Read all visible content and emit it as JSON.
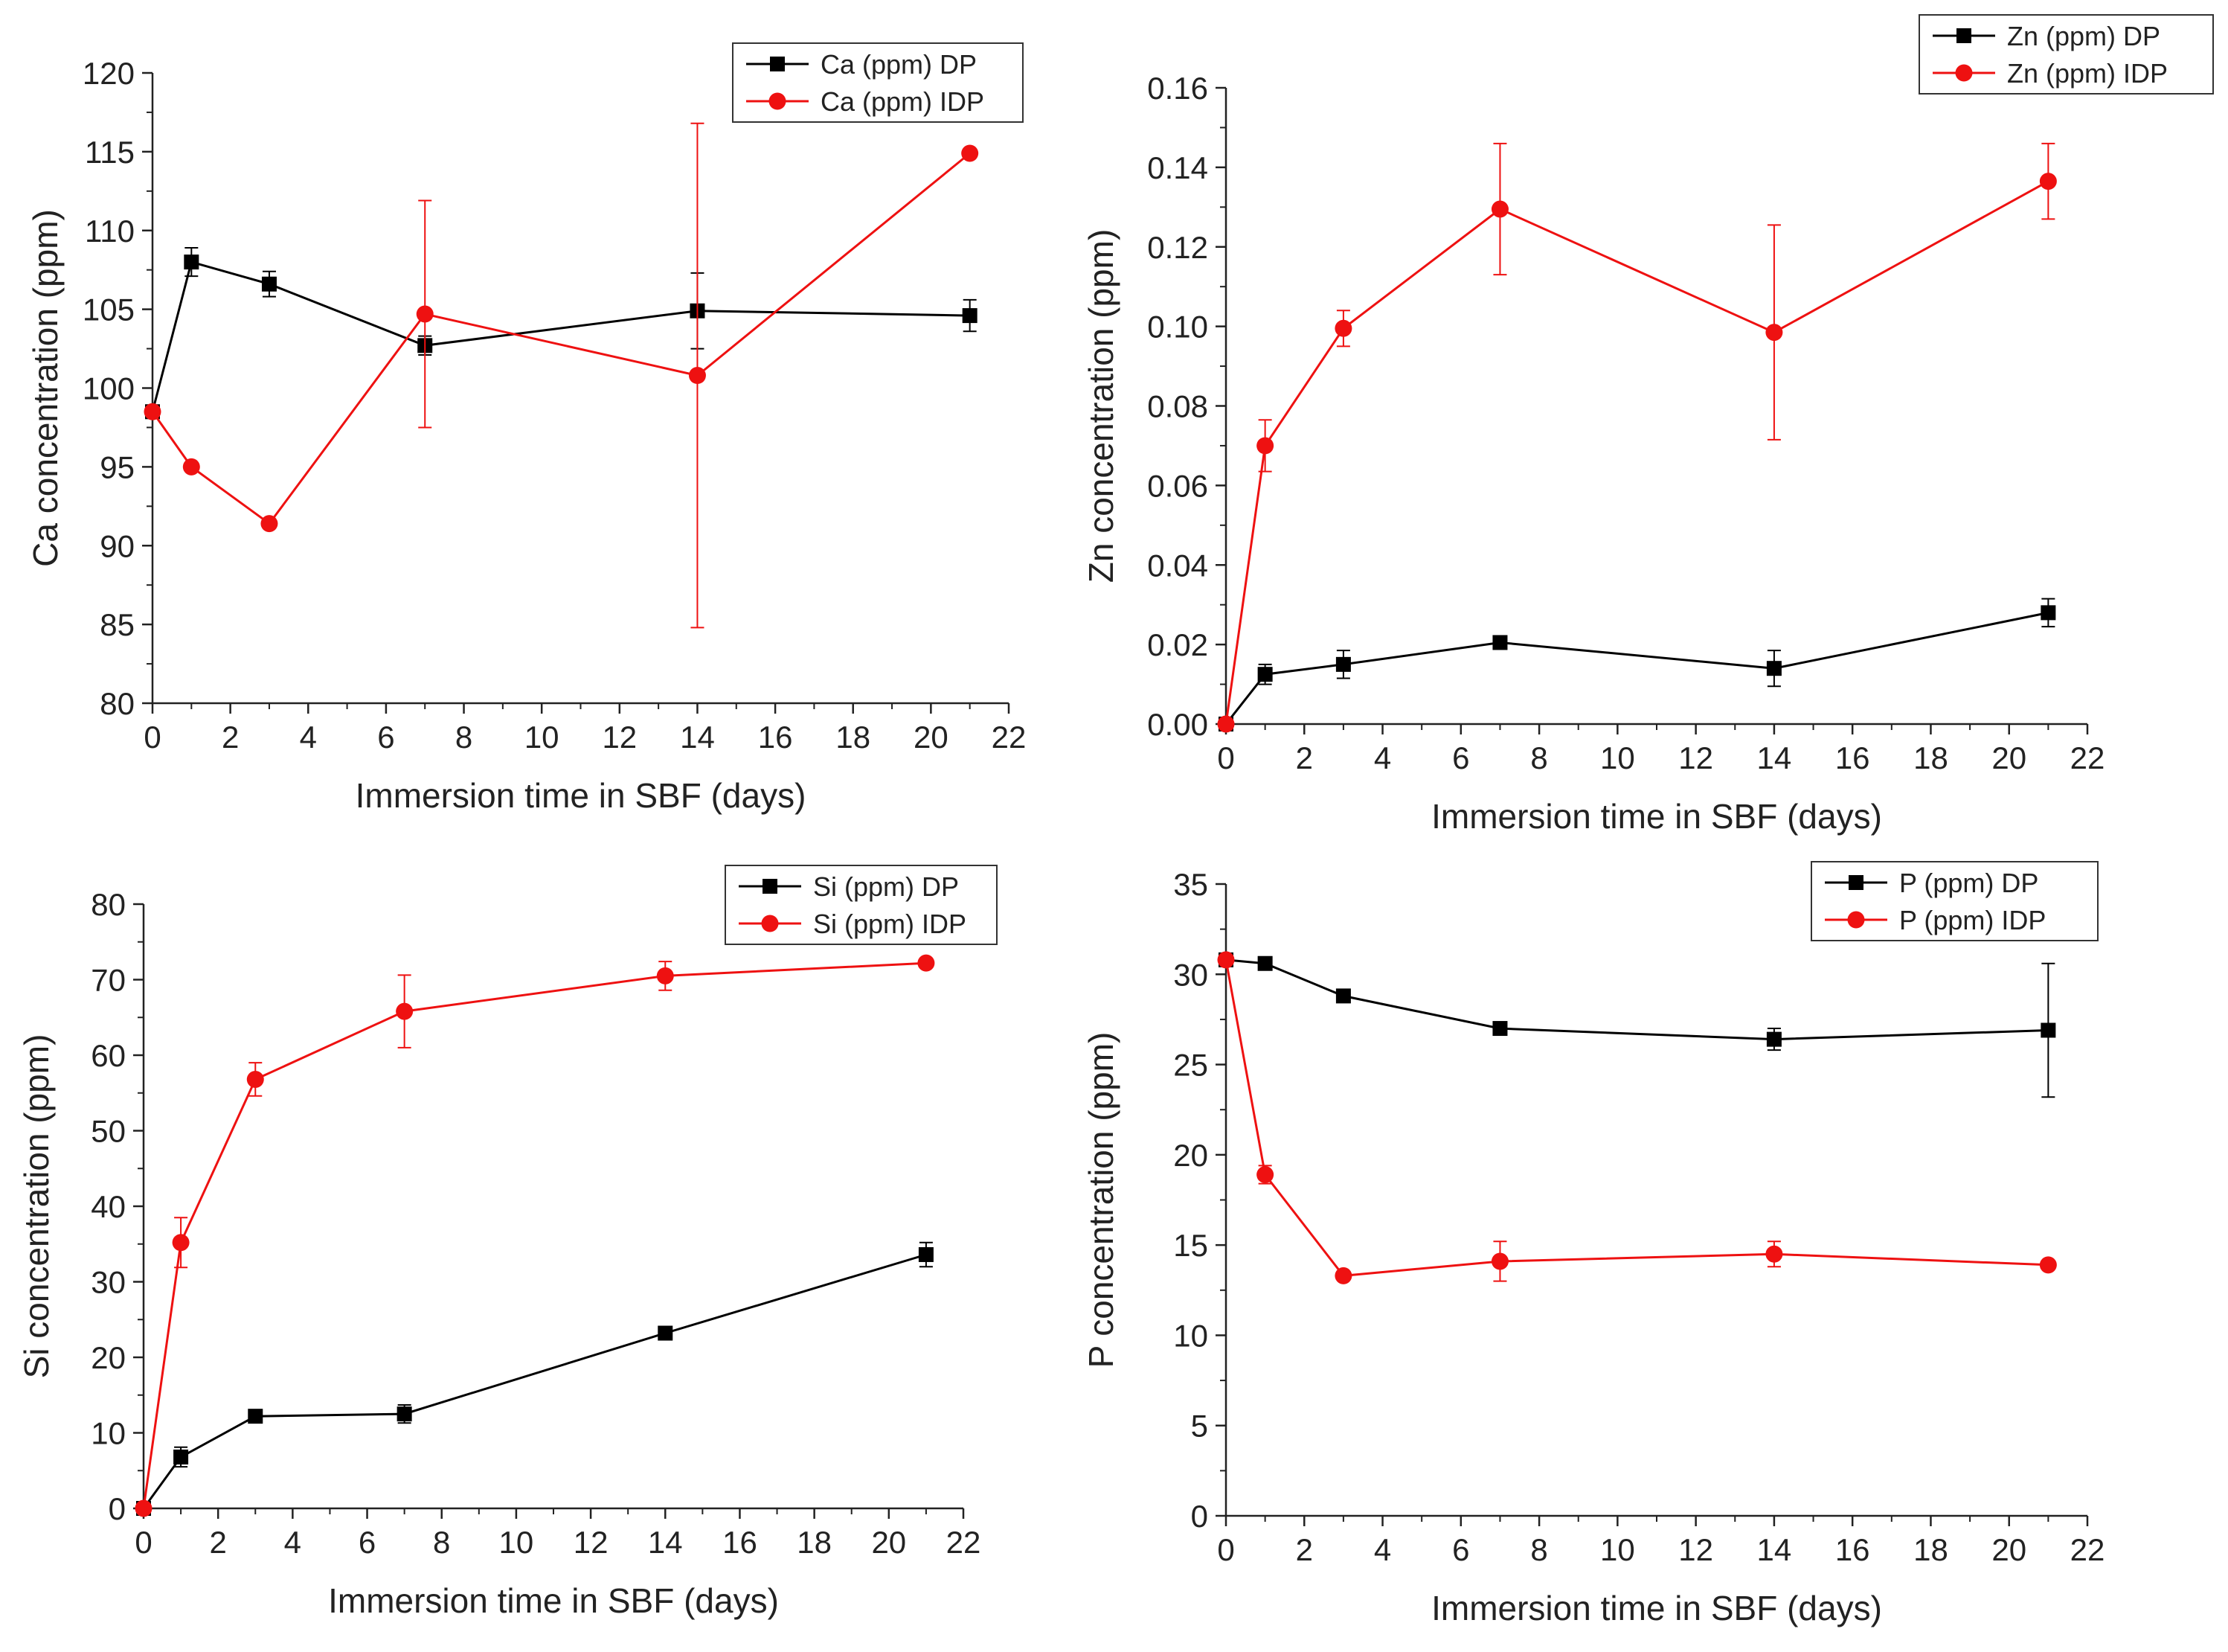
{
  "colors": {
    "dp": "#000000",
    "idp": "#ee1111",
    "axis": "#222222",
    "legend_border": "#333333"
  },
  "chart_data": [
    {
      "type": "line",
      "title": "",
      "xlabel": "Immersion time in SBF (days)",
      "ylabel": "Ca concentration (ppm)",
      "xlim": [
        0,
        22
      ],
      "ylim": [
        80,
        120
      ],
      "xticks": [
        0,
        2,
        4,
        6,
        8,
        10,
        12,
        14,
        16,
        18,
        20,
        22
      ],
      "yticks": [
        80,
        85,
        90,
        95,
        100,
        105,
        110,
        115,
        120
      ],
      "ytick_decimals": 0,
      "grid": false,
      "legend_position": "top-right",
      "x": [
        0,
        1,
        3,
        7,
        14,
        21
      ],
      "series": [
        {
          "name": "Ca (ppm) DP",
          "marker": "square",
          "color": "#000000",
          "values": [
            98.5,
            108.0,
            106.6,
            102.7,
            104.9,
            104.6
          ],
          "errors": [
            0,
            0.9,
            0.8,
            0.6,
            2.4,
            1.0
          ]
        },
        {
          "name": "Ca (ppm) IDP",
          "marker": "circle",
          "color": "#ee1111",
          "values": [
            98.5,
            95.0,
            91.4,
            104.7,
            100.8,
            114.9
          ],
          "errors": [
            0,
            0,
            0,
            7.2,
            16.0,
            0
          ]
        }
      ]
    },
    {
      "type": "line",
      "title": "",
      "xlabel": "Immersion time in SBF (days)",
      "ylabel": "Zn concentration (ppm)",
      "xlim": [
        0,
        22
      ],
      "ylim": [
        0,
        0.16
      ],
      "xticks": [
        0,
        2,
        4,
        6,
        8,
        10,
        12,
        14,
        16,
        18,
        20,
        22
      ],
      "yticks": [
        0,
        0.02,
        0.04,
        0.06,
        0.08,
        0.1,
        0.12,
        0.14,
        0.16
      ],
      "ytick_decimals": 2,
      "grid": false,
      "legend_position": "top-right",
      "x": [
        0,
        1,
        3,
        7,
        14,
        21
      ],
      "series": [
        {
          "name": "Zn (ppm) DP",
          "marker": "square",
          "color": "#000000",
          "values": [
            0.0,
            0.0125,
            0.015,
            0.0205,
            0.014,
            0.028
          ],
          "errors": [
            0,
            0.0025,
            0.0035,
            0.0015,
            0.0045,
            0.0035
          ]
        },
        {
          "name": "Zn (ppm) IDP",
          "marker": "circle",
          "color": "#ee1111",
          "values": [
            0.0,
            0.07,
            0.0995,
            0.1295,
            0.0985,
            0.1365
          ],
          "errors": [
            0,
            0.0065,
            0.0045,
            0.0165,
            0.027,
            0.0095
          ]
        }
      ]
    },
    {
      "type": "line",
      "title": "",
      "xlabel": "Immersion time in SBF (days)",
      "ylabel": "Si concentration (ppm)",
      "xlim": [
        0,
        22
      ],
      "ylim": [
        0,
        80
      ],
      "xticks": [
        0,
        2,
        4,
        6,
        8,
        10,
        12,
        14,
        16,
        18,
        20,
        22
      ],
      "yticks": [
        0,
        10,
        20,
        30,
        40,
        50,
        60,
        70,
        80
      ],
      "ytick_decimals": 0,
      "grid": false,
      "legend_position": "top-right",
      "x": [
        0,
        1,
        3,
        7,
        14,
        21
      ],
      "series": [
        {
          "name": "Si (ppm) DP",
          "marker": "square",
          "color": "#000000",
          "values": [
            0.0,
            6.8,
            12.2,
            12.5,
            23.2,
            33.6
          ],
          "errors": [
            0,
            1.3,
            0.5,
            1.2,
            0.5,
            1.6
          ]
        },
        {
          "name": "Si (ppm) IDP",
          "marker": "circle",
          "color": "#ee1111",
          "values": [
            0.0,
            35.2,
            56.8,
            65.8,
            70.5,
            72.2
          ],
          "errors": [
            0,
            3.3,
            2.2,
            4.8,
            1.9,
            0
          ]
        }
      ]
    },
    {
      "type": "line",
      "title": "",
      "xlabel": "Immersion time in SBF (days)",
      "ylabel": "P concentration (ppm)",
      "xlim": [
        0,
        22
      ],
      "ylim": [
        0,
        35
      ],
      "xticks": [
        0,
        2,
        4,
        6,
        8,
        10,
        12,
        14,
        16,
        18,
        20,
        22
      ],
      "yticks": [
        0,
        5,
        10,
        15,
        20,
        25,
        30,
        35
      ],
      "ytick_decimals": 0,
      "grid": false,
      "legend_position": "top-right",
      "x": [
        0,
        1,
        3,
        7,
        14,
        21
      ],
      "series": [
        {
          "name": "P (ppm) DP",
          "marker": "square",
          "color": "#000000",
          "values": [
            30.8,
            30.6,
            28.8,
            27.0,
            26.4,
            26.9
          ],
          "errors": [
            0,
            0,
            0,
            0,
            0.6,
            3.7
          ]
        },
        {
          "name": "P (ppm) IDP",
          "marker": "circle",
          "color": "#ee1111",
          "values": [
            30.8,
            18.9,
            13.3,
            14.1,
            14.5,
            13.9
          ],
          "errors": [
            0,
            0.5,
            0,
            1.1,
            0.7,
            0
          ]
        }
      ]
    }
  ]
}
